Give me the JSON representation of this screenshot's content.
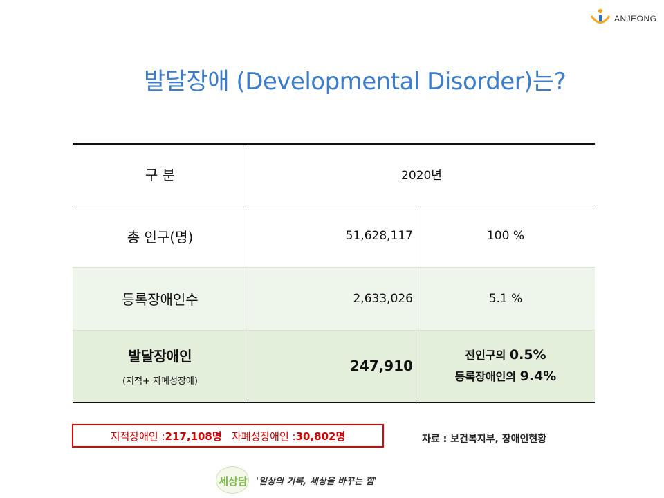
{
  "brand": {
    "name": "ANJEONG",
    "colors": {
      "orange": "#f5a623",
      "blue": "#2d73c8"
    }
  },
  "title": "발달장애 (Developmental Disorder)는?",
  "table": {
    "header": {
      "label": "구 분",
      "year": "2020년"
    },
    "rows": [
      {
        "label": "총 인구(명)",
        "value": "51,628,117",
        "percent": "100 %"
      },
      {
        "label": "등록장애인수",
        "value": "2,633,026",
        "percent": "5.1 %"
      },
      {
        "label": "발달장애인",
        "sublabel": "(지적+ 자폐성장애)",
        "value": "247,910",
        "percent_line1_prefix": "전인구의 ",
        "percent_line1_value": "0.5%",
        "percent_line2_prefix": "등록장애인의 ",
        "percent_line2_value": "9.4%"
      }
    ]
  },
  "note": {
    "intellectual_label": "지적장애인 : ",
    "intellectual_value": "217,108명",
    "autism_label": "자폐성장애인 : ",
    "autism_value": "30,802명"
  },
  "source": "자료 :  보건복지부, 장애인현황",
  "footer": {
    "badge_text": "세상담",
    "slogan": "'일상의 기록, 세상을 바꾸는 힘'"
  }
}
